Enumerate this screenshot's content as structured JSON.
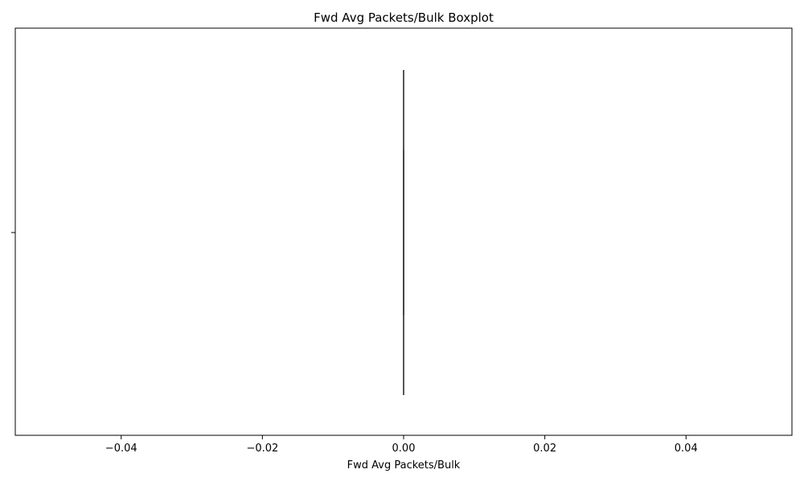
{
  "chart_data": {
    "type": "boxplot",
    "title": "Fwd Avg Packets/Bulk Boxplot",
    "xlabel": "Fwd Avg Packets/Bulk",
    "ylabel": "",
    "xlim": [
      -0.055,
      0.055
    ],
    "xticks": [
      -0.04,
      -0.02,
      0.0,
      0.02,
      0.04
    ],
    "xtick_labels": [
      "−0.04",
      "−0.02",
      "0.00",
      "0.02",
      "0.04"
    ],
    "orientation": "horizontal",
    "grid": false,
    "box": {
      "min": 0.0,
      "q1": 0.0,
      "median": 0.0,
      "q3": 0.0,
      "max": 0.0
    },
    "colors": {
      "box_line": "#3f3f3f",
      "axes": "#000000",
      "background": "#ffffff"
    }
  }
}
